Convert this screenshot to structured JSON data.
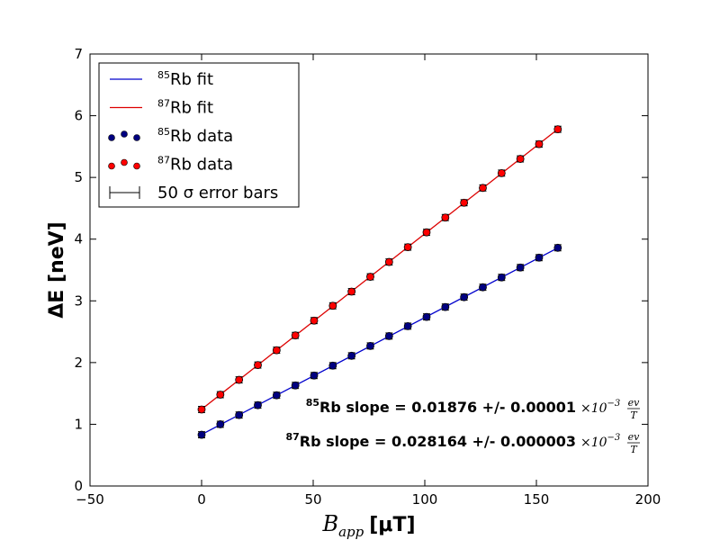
{
  "chart_data": {
    "type": "scatter",
    "xlabel_base": "B",
    "xlabel_sub": "app",
    "xlabel_unit": "[μT]",
    "ylabel": "ΔE [neV]",
    "xlim": [
      -50,
      200
    ],
    "ylim": [
      0,
      7
    ],
    "xticks": [
      -50,
      0,
      50,
      100,
      150,
      200
    ],
    "yticks": [
      0,
      1,
      2,
      3,
      4,
      5,
      6,
      7
    ],
    "grid": false,
    "legend_position": "top-left",
    "legend": [
      {
        "sup": "85",
        "text": "Rb fit",
        "kind": "line",
        "color": "#0000cc"
      },
      {
        "sup": "87",
        "text": "Rb fit",
        "kind": "line",
        "color": "#dd0000"
      },
      {
        "sup": "85",
        "text": "Rb data",
        "kind": "dots",
        "color": "#000080"
      },
      {
        "sup": "87",
        "text": "Rb data",
        "kind": "dots",
        "color": "#ff0000"
      },
      {
        "sup": "",
        "text": "50 σ error bars",
        "kind": "errorbar",
        "color": "#000000"
      }
    ],
    "series": [
      {
        "name": "85Rb data",
        "color": "#000080",
        "fit_color": "#0000cc",
        "x": [
          0,
          8.4,
          16.8,
          25.2,
          33.6,
          42,
          50.4,
          58.8,
          67.2,
          75.6,
          84,
          92.4,
          100.8,
          109.2,
          117.6,
          126,
          134.4,
          142.8,
          151.2,
          159.6
        ],
        "y": [
          0.83,
          1.0,
          1.15,
          1.31,
          1.47,
          1.63,
          1.79,
          1.95,
          2.11,
          2.27,
          2.43,
          2.59,
          2.74,
          2.9,
          3.06,
          3.22,
          3.38,
          3.54,
          3.7,
          3.86
        ],
        "yerr": 0.05
      },
      {
        "name": "87Rb data",
        "color": "#ff0000",
        "fit_color": "#dd0000",
        "x": [
          0,
          8.4,
          16.8,
          25.2,
          33.6,
          42,
          50.4,
          58.8,
          67.2,
          75.6,
          84,
          92.4,
          100.8,
          109.2,
          117.6,
          126,
          134.4,
          142.8,
          151.2,
          159.6
        ],
        "y": [
          1.24,
          1.48,
          1.72,
          1.96,
          2.2,
          2.44,
          2.68,
          2.92,
          3.15,
          3.39,
          3.63,
          3.87,
          4.11,
          4.35,
          4.59,
          4.83,
          5.07,
          5.3,
          5.54,
          5.78
        ],
        "yerr": 0.05
      }
    ],
    "annotations": [
      {
        "sup": "85",
        "text": "Rb slope = 0.01876 +/- 0.00001",
        "math": "×10",
        "exp": "−3",
        "frac_num": "ev",
        "frac_den": "T"
      },
      {
        "sup": "87",
        "text": "Rb slope = 0.028164 +/- 0.000003",
        "math": "×10",
        "exp": "−3",
        "frac_num": "ev",
        "frac_den": "T"
      }
    ]
  }
}
